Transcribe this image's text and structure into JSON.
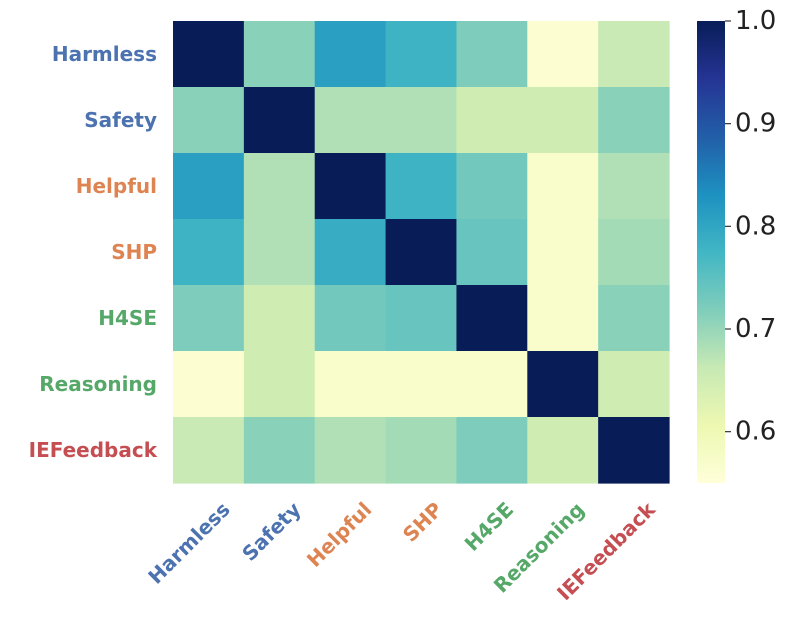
{
  "chart_data": {
    "type": "heatmap",
    "title": "",
    "xlabel": "",
    "ylabel": "",
    "rows": [
      "Harmless",
      "Safety",
      "Helpful",
      "SHP",
      "H4SE",
      "Reasoning",
      "IEFeedback"
    ],
    "columns": [
      "Harmless",
      "Safety",
      "Helpful",
      "SHP",
      "H4SE",
      "Reasoning",
      "IEFeedback"
    ],
    "label_colors": [
      "#4c72b0",
      "#4c72b0",
      "#dd8452",
      "#dd8452",
      "#55a868",
      "#55a868",
      "#c44e52"
    ],
    "values": [
      [
        1.0,
        0.71,
        0.81,
        0.78,
        0.72,
        0.56,
        0.66
      ],
      [
        0.71,
        1.0,
        0.68,
        0.68,
        0.65,
        0.65,
        0.71
      ],
      [
        0.81,
        0.68,
        1.0,
        0.78,
        0.73,
        0.57,
        0.68
      ],
      [
        0.78,
        0.68,
        0.79,
        1.0,
        0.74,
        0.57,
        0.69
      ],
      [
        0.72,
        0.65,
        0.73,
        0.74,
        1.0,
        0.57,
        0.71
      ],
      [
        0.56,
        0.65,
        0.57,
        0.57,
        0.57,
        1.0,
        0.65
      ],
      [
        0.66,
        0.71,
        0.68,
        0.69,
        0.72,
        0.65,
        1.0
      ]
    ],
    "colorbar": {
      "min": 0.55,
      "max": 1.0,
      "ticks": [
        0.6,
        0.7,
        0.8,
        0.9,
        1.0
      ],
      "tick_labels": [
        "0.6",
        "0.7",
        "0.8",
        "0.9",
        "1.0"
      ]
    },
    "colormap": "YlGnBu",
    "colormap_stops": [
      [
        "#ffffd9",
        0.0
      ],
      [
        "#edf8b1",
        0.125
      ],
      [
        "#c7e9b4",
        0.25
      ],
      [
        "#7fcdbb",
        0.375
      ],
      [
        "#41b6c4",
        0.5
      ],
      [
        "#1d91c0",
        0.625
      ],
      [
        "#225ea8",
        0.75
      ],
      [
        "#253494",
        0.875
      ],
      [
        "#081d58",
        1.0
      ]
    ]
  }
}
